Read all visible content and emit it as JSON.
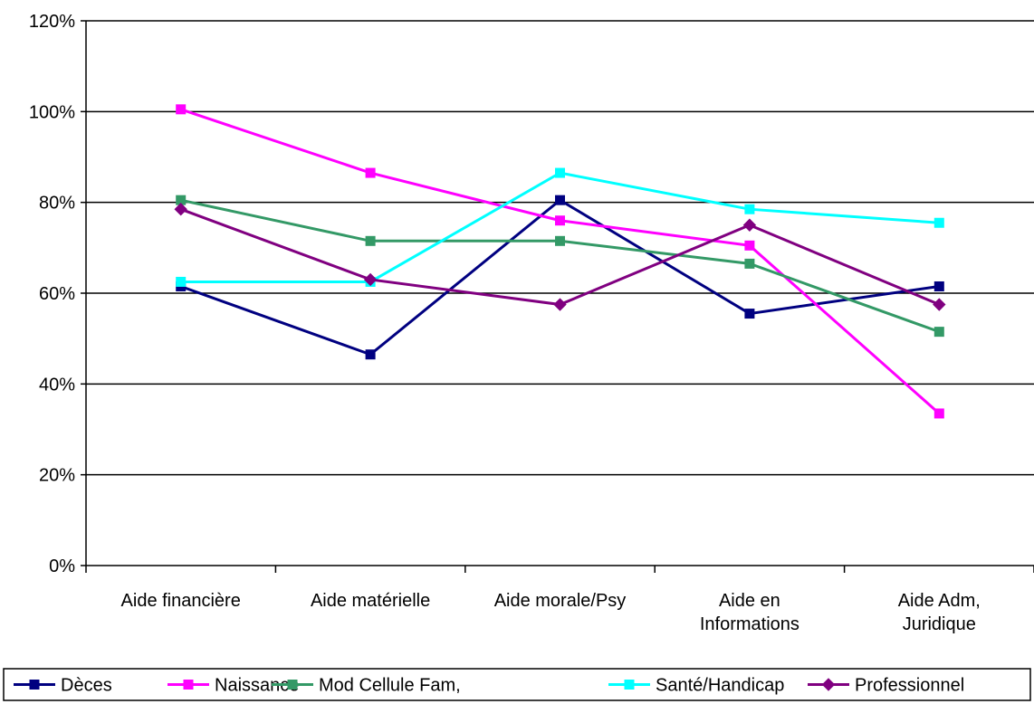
{
  "chart_data": {
    "type": "line",
    "title": "",
    "xlabel": "",
    "ylabel": "",
    "ylim": [
      0,
      1.2
    ],
    "yticks": [
      {
        "value": 0,
        "label": "0%"
      },
      {
        "value": 0.2,
        "label": "20%"
      },
      {
        "value": 0.4,
        "label": "40%"
      },
      {
        "value": 0.6,
        "label": "60%"
      },
      {
        "value": 0.8,
        "label": "80%"
      },
      {
        "value": 1.0,
        "label": "100%"
      },
      {
        "value": 1.2,
        "label": "120%"
      }
    ],
    "categories": [
      {
        "lines": [
          "Aide financière"
        ]
      },
      {
        "lines": [
          "Aide matérielle"
        ]
      },
      {
        "lines": [
          "Aide morale/Psy"
        ]
      },
      {
        "lines": [
          "Aide en",
          "Informations"
        ]
      },
      {
        "lines": [
          "Aide Adm,",
          "Juridique"
        ]
      }
    ],
    "grid": "horizontal",
    "legend_position": "bottom",
    "series": [
      {
        "name": "Dèces",
        "color": "#000080",
        "marker": "square",
        "values": [
          0.615,
          0.465,
          0.805,
          0.555,
          0.615
        ]
      },
      {
        "name": "Naissance",
        "color": "#ff00ff",
        "marker": "square",
        "values": [
          1.005,
          0.865,
          0.76,
          0.705,
          0.335
        ]
      },
      {
        "name": "Mod Cellule Fam,",
        "color": "#339966",
        "marker": "square",
        "values": [
          0.805,
          0.715,
          0.715,
          0.665,
          0.515
        ]
      },
      {
        "name": "Santé/Handicap",
        "color": "#00ffff",
        "marker": "square",
        "values": [
          0.625,
          0.625,
          0.865,
          0.785,
          0.755
        ]
      },
      {
        "name": "Professionnel",
        "color": "#800080",
        "marker": "diamond",
        "values": [
          0.785,
          0.63,
          0.575,
          0.75,
          0.575
        ]
      }
    ]
  }
}
